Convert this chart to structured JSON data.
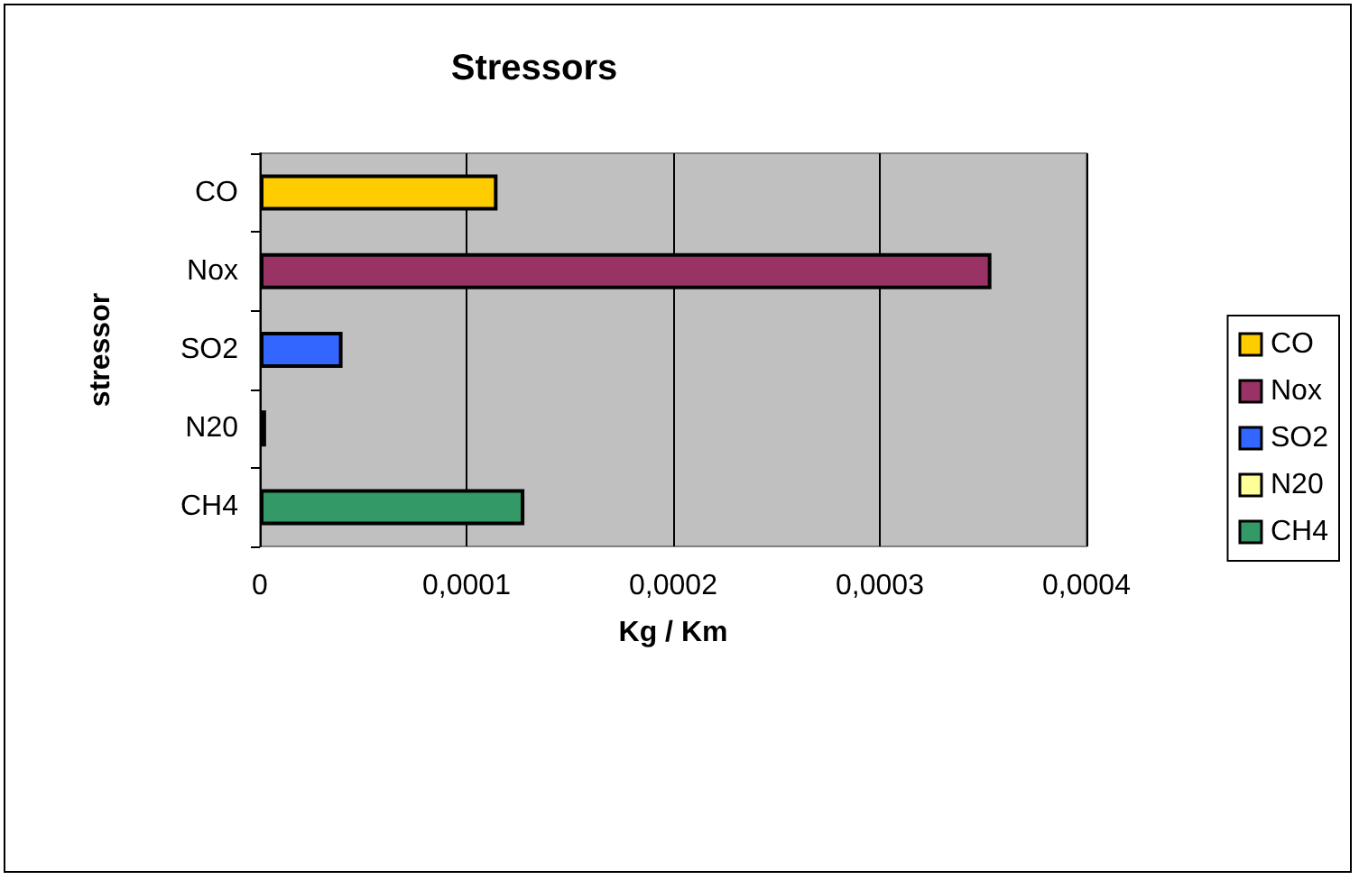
{
  "chart_data": {
    "type": "bar",
    "orientation": "horizontal",
    "title": "Stressors",
    "xlabel": "Kg / Km",
    "ylabel": "stressor",
    "categories": [
      "CO",
      "Nox",
      "SO2",
      "N20",
      "CH4"
    ],
    "series": [
      {
        "name": "CO",
        "color": "#ffcc00",
        "values": [
          0.000115,
          null,
          null,
          null,
          null
        ]
      },
      {
        "name": "Nox",
        "color": "#993366",
        "values": [
          null,
          0.000354,
          null,
          null,
          null
        ]
      },
      {
        "name": "SO2",
        "color": "#3366ff",
        "values": [
          null,
          null,
          4e-05,
          null,
          null
        ]
      },
      {
        "name": "N20",
        "color": "#ffff99",
        "values": [
          null,
          null,
          null,
          3e-06,
          null
        ]
      },
      {
        "name": "CH4",
        "color": "#339966",
        "values": [
          null,
          null,
          null,
          null,
          0.000128
        ]
      }
    ],
    "xlim": [
      0,
      0.0004
    ],
    "xticks": [
      0,
      {
        "value": 0.0001,
        "label": "0,0001"
      },
      {
        "value": 0.0002,
        "label": "0,0002"
      },
      {
        "value": 0.0003,
        "label": "0,0003"
      },
      {
        "value": 0.0004,
        "label": "0,0004"
      }
    ],
    "grid": "x",
    "legend": "right"
  }
}
